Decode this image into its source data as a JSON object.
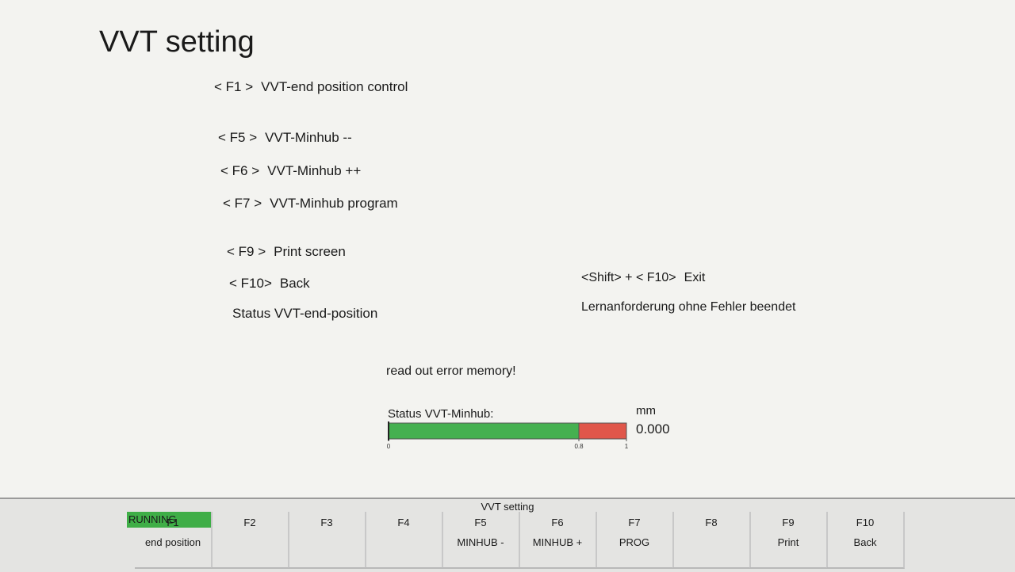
{
  "title": "VVT setting",
  "menu": [
    {
      "key": "< F1 >",
      "label": "VVT-end position control"
    },
    {
      "key": "< F5 >",
      "label": "VVT-Minhub --"
    },
    {
      "key": "< F6 >",
      "label": "VVT-Minhub ++"
    },
    {
      "key": "< F7 >",
      "label": "VVT-Minhub program"
    },
    {
      "key": "< F9 >",
      "label": "Print screen"
    },
    {
      "key": "< F10>",
      "label": "Back"
    }
  ],
  "exit": {
    "key": "<Shift> + < F10>",
    "label": "Exit"
  },
  "status_label": "Status VVT-end-position",
  "status_text": "Lernanforderung ohne Fehler beendet",
  "message": "read out error memory!",
  "gauge": {
    "label": "Status VVT-Minhub:",
    "unit": "mm",
    "value": {
      "value": 0,
      "label": "0.000"
    },
    "ticks": [
      0,
      0.8,
      1
    ]
  },
  "footer": {
    "state": "RUNNING",
    "title": "VVT setting",
    "keys": [
      {
        "key": "F1",
        "label": "end position"
      },
      {
        "key": "F2"
      },
      {
        "key": "F3"
      },
      {
        "key": "F4"
      },
      {
        "key": "F5",
        "label": "MINHUB -"
      },
      {
        "key": "F6",
        "label": "MINHUB +"
      },
      {
        "key": "F7",
        "label": "PROG"
      },
      {
        "key": "F8"
      },
      {
        "key": "F9",
        "label": "Print"
      },
      {
        "key": "F10",
        "label": "Back"
      }
    ]
  }
}
